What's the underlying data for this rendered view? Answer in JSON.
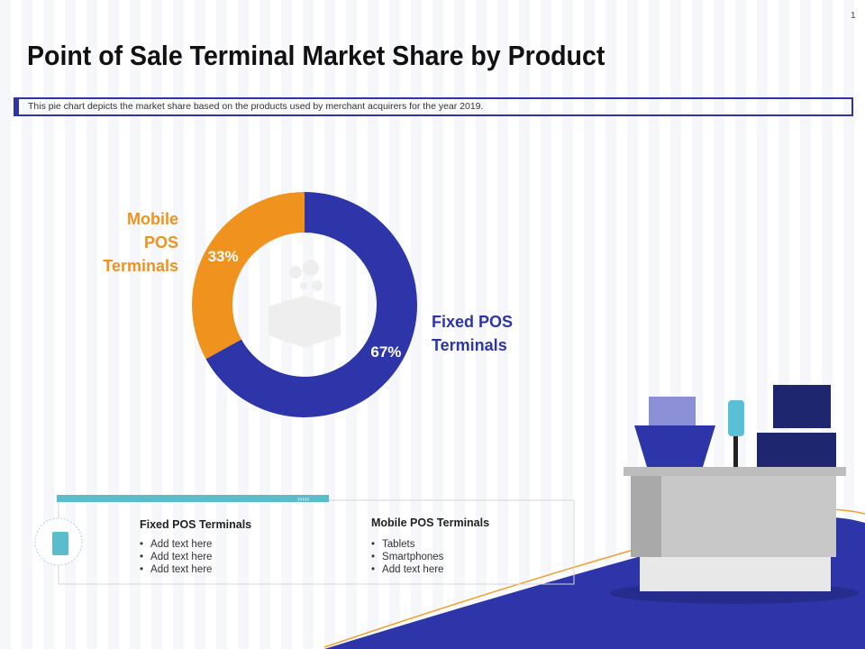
{
  "page_number": "1",
  "chart_data": {
    "type": "pie",
    "title": "Point of Sale Terminal Market Share by Product",
    "subtitle": "This pie chart depicts the market share based on the products used by merchant acquirers for the year 2019.",
    "categories": [
      "Fixed POS Terminals",
      "Mobile POS Terminals"
    ],
    "values": [
      67,
      33
    ],
    "value_labels": [
      "67%",
      "33%"
    ],
    "colors": [
      "#2e35a8",
      "#f0921e"
    ],
    "donut": true
  },
  "panel": {
    "columns": [
      {
        "title": "Fixed POS Terminals",
        "bullets": [
          "Add text here",
          "Add text here",
          "Add text here"
        ]
      },
      {
        "title": "Mobile POS Terminals",
        "bullets": [
          "Tablets",
          "Smartphones",
          "Add text here"
        ]
      }
    ]
  }
}
